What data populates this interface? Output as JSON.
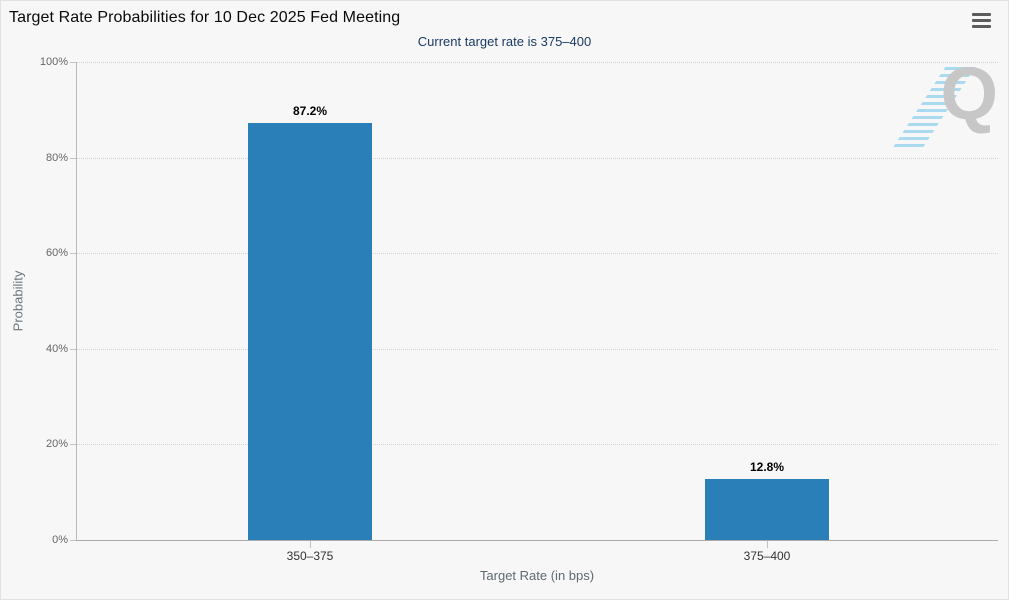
{
  "header": {
    "menu_tooltip": "Chart context menu"
  },
  "watermark": {
    "letter": "Q"
  },
  "colors": {
    "bar": "#2b7fb8",
    "subtitle_text": "#1b3a64",
    "watermark_gray": "#c7c7c7",
    "watermark_blue": "#80cbed"
  },
  "chart_data": {
    "type": "bar",
    "title": "Target Rate Probabilities for 10 Dec 2025 Fed Meeting",
    "subtitle": "Current target rate is 375–400",
    "categories": [
      "350–375",
      "375–400"
    ],
    "values": [
      87.2,
      12.8
    ],
    "data_labels": [
      "87.2%",
      "12.8%"
    ],
    "xlabel": "Target Rate (in bps)",
    "ylabel": "Probability",
    "ylim": [
      0,
      100
    ],
    "ytick_labels": [
      "0%",
      "20%",
      "40%",
      "60%",
      "80%",
      "100%"
    ],
    "grid": "horizontal-dotted",
    "legend_position": "none",
    "bar_color": "#2b7fb8"
  }
}
